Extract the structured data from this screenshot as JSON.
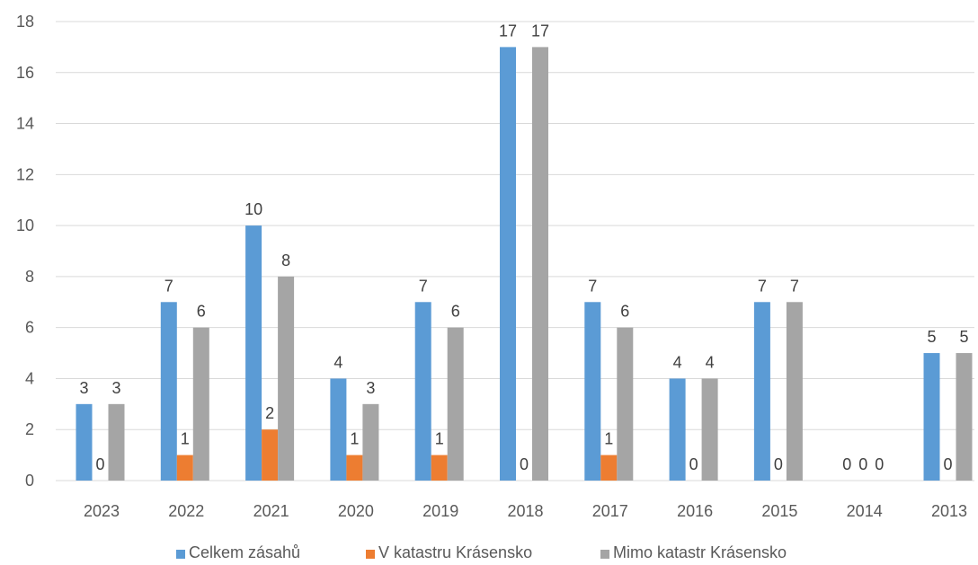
{
  "chart_data": {
    "type": "bar",
    "categories": [
      "2023",
      "2022",
      "2021",
      "2020",
      "2019",
      "2018",
      "2017",
      "2016",
      "2015",
      "2014",
      "2013"
    ],
    "series": [
      {
        "name": "Celkem zásahů",
        "color": "#5b9bd5",
        "values": [
          3,
          7,
          10,
          4,
          7,
          17,
          7,
          4,
          7,
          0,
          5
        ]
      },
      {
        "name": "V katastru Krásensko",
        "color": "#ed7d31",
        "values": [
          0,
          1,
          2,
          1,
          1,
          0,
          1,
          0,
          0,
          0,
          0
        ]
      },
      {
        "name": "Mimo katastr Krásensko",
        "color": "#a5a5a5",
        "values": [
          3,
          6,
          8,
          3,
          6,
          17,
          6,
          4,
          7,
          0,
          5
        ]
      }
    ],
    "ylim": [
      0,
      18
    ],
    "yticks": [
      0,
      2,
      4,
      6,
      8,
      10,
      12,
      14,
      16,
      18
    ],
    "grid": true,
    "legend_position": "bottom",
    "data_labels": true,
    "title": "",
    "xlabel": "",
    "ylabel": ""
  }
}
